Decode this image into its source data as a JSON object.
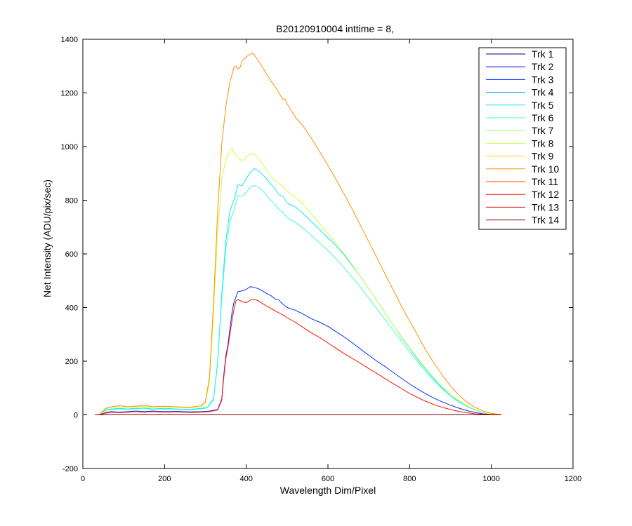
{
  "chart_data": {
    "type": "line",
    "title": "B20120910004 inttime = 8,",
    "xlabel": "Wavelength Dim/Pixel",
    "ylabel": "Net Intensity (ADU/pix/sec)",
    "xlim": [
      0,
      1200
    ],
    "ylim": [
      -200,
      1400
    ],
    "xticks": [
      0,
      200,
      400,
      600,
      800,
      1000,
      1200
    ],
    "yticks": [
      -200,
      0,
      200,
      400,
      600,
      800,
      1000,
      1200,
      1400
    ],
    "grid": false,
    "legend_position": "top-right",
    "series": [
      {
        "name": "Trk 1",
        "color": "#00007f",
        "x": [
          30,
          1025
        ],
        "y": [
          0,
          0
        ]
      },
      {
        "name": "Trk 2",
        "color": "#0000d4",
        "x": [
          30,
          1025
        ],
        "y": [
          0,
          0
        ]
      },
      {
        "name": "Trk 3",
        "color": "#0030ff",
        "x": [
          30,
          40,
          55,
          70,
          90,
          110,
          130,
          150,
          170,
          200,
          230,
          260,
          290,
          310,
          330,
          340,
          345,
          350,
          355,
          360,
          365,
          370,
          375,
          380,
          390,
          400,
          410,
          420,
          430,
          440,
          450,
          460,
          470,
          480,
          490,
          500,
          520,
          540,
          560,
          580,
          600,
          620,
          640,
          660,
          680,
          700,
          720,
          740,
          760,
          780,
          800,
          820,
          840,
          860,
          880,
          900,
          920,
          940,
          960,
          980,
          1000,
          1025
        ],
        "y": [
          0,
          0,
          8,
          12,
          10,
          12,
          14,
          12,
          14,
          12,
          13,
          11,
          12,
          14,
          20,
          60,
          150,
          220,
          260,
          320,
          380,
          420,
          440,
          460,
          462,
          468,
          478,
          475,
          470,
          462,
          452,
          445,
          432,
          428,
          412,
          400,
          390,
          375,
          358,
          345,
          330,
          310,
          290,
          268,
          245,
          222,
          200,
          180,
          158,
          136,
          115,
          96,
          78,
          62,
          48,
          36,
          25,
          16,
          9,
          4,
          1,
          0
        ]
      },
      {
        "name": "Trk 4",
        "color": "#0090ff",
        "x": [
          30,
          1025
        ],
        "y": [
          0,
          0
        ]
      },
      {
        "name": "Trk 5",
        "color": "#10e8f0",
        "x": [
          30,
          40,
          55,
          70,
          90,
          110,
          130,
          150,
          170,
          200,
          230,
          260,
          290,
          305,
          320,
          330,
          340,
          350,
          360,
          365,
          370,
          375,
          380,
          390,
          400,
          410,
          420,
          430,
          440,
          450,
          460,
          470,
          480,
          490,
          500,
          520,
          540,
          560,
          580,
          600,
          620,
          640,
          660,
          680,
          700,
          720,
          740,
          760,
          780,
          800,
          820,
          840,
          860,
          880,
          900,
          920,
          940,
          960,
          980,
          1000,
          1025
        ],
        "y": [
          0,
          0,
          18,
          22,
          24,
          22,
          24,
          26,
          22,
          24,
          22,
          20,
          24,
          28,
          60,
          200,
          450,
          650,
          760,
          780,
          800,
          830,
          858,
          855,
          880,
          905,
          918,
          910,
          895,
          880,
          860,
          845,
          820,
          815,
          790,
          775,
          750,
          720,
          690,
          660,
          630,
          595,
          555,
          515,
          470,
          425,
          380,
          335,
          290,
          248,
          205,
          168,
          132,
          100,
          72,
          50,
          32,
          18,
          9,
          3,
          0
        ]
      },
      {
        "name": "Trk 6",
        "color": "#40ffd0",
        "x": [
          30,
          40,
          55,
          70,
          90,
          110,
          130,
          150,
          170,
          200,
          230,
          260,
          290,
          305,
          320,
          330,
          340,
          350,
          360,
          365,
          370,
          375,
          380,
          390,
          400,
          410,
          420,
          430,
          440,
          450,
          460,
          470,
          480,
          490,
          500,
          520,
          540,
          560,
          580,
          600,
          620,
          640,
          660,
          680,
          700,
          720,
          740,
          760,
          780,
          800,
          820,
          840,
          860,
          880,
          900,
          920,
          940,
          960,
          980,
          1000,
          1025
        ],
        "y": [
          0,
          0,
          16,
          20,
          22,
          20,
          22,
          24,
          20,
          22,
          20,
          18,
          22,
          26,
          55,
          190,
          430,
          620,
          720,
          740,
          760,
          790,
          818,
          815,
          830,
          848,
          855,
          848,
          835,
          818,
          800,
          785,
          765,
          755,
          735,
          718,
          695,
          668,
          640,
          612,
          582,
          548,
          512,
          475,
          435,
          395,
          355,
          315,
          275,
          235,
          196,
          160,
          126,
          96,
          70,
          48,
          31,
          18,
          9,
          3,
          0
        ]
      },
      {
        "name": "Trk 7",
        "color": "#a0ff80",
        "x": [
          30,
          1025
        ],
        "y": [
          0,
          0
        ]
      },
      {
        "name": "Trk 8",
        "color": "#d0ff40",
        "x": [
          30,
          40,
          55,
          70,
          90,
          110,
          130,
          150,
          170,
          200,
          230,
          260,
          290,
          300,
          310,
          320,
          330,
          340,
          350,
          360,
          365,
          370,
          380,
          390,
          400,
          410,
          420,
          430,
          440,
          450,
          460,
          470,
          480,
          490,
          500,
          520,
          540,
          560,
          580,
          600,
          620,
          640,
          660,
          680,
          700,
          720,
          740,
          760,
          780,
          800,
          820,
          840,
          860,
          880,
          900,
          920,
          940,
          960,
          980,
          1000,
          1025
        ],
        "y": [
          0,
          0,
          22,
          28,
          30,
          28,
          30,
          32,
          28,
          30,
          28,
          26,
          30,
          45,
          120,
          380,
          680,
          880,
          950,
          985,
          995,
          975,
          960,
          945,
          960,
          975,
          972,
          955,
          935,
          910,
          890,
          875,
          862,
          852,
          835,
          812,
          782,
          748,
          712,
          675,
          638,
          600,
          558,
          515,
          470,
          425,
          380,
          335,
          292,
          250,
          210,
          172,
          137,
          105,
          77,
          54,
          35,
          20,
          10,
          4,
          0
        ]
      },
      {
        "name": "Trk 9",
        "color": "#ffd000",
        "x": [
          30,
          1025
        ],
        "y": [
          0,
          0
        ]
      },
      {
        "name": "Trk 10",
        "color": "#ff9000",
        "x": [
          30,
          40,
          55,
          70,
          90,
          110,
          130,
          150,
          170,
          200,
          230,
          260,
          290,
          300,
          310,
          320,
          330,
          340,
          350,
          360,
          370,
          375,
          380,
          385,
          390,
          400,
          410,
          415,
          420,
          430,
          440,
          450,
          460,
          470,
          480,
          490,
          495,
          500,
          520,
          540,
          560,
          580,
          600,
          620,
          640,
          660,
          680,
          700,
          720,
          740,
          760,
          780,
          800,
          820,
          840,
          860,
          880,
          900,
          920,
          940,
          960,
          980,
          1000,
          1025
        ],
        "y": [
          0,
          0,
          24,
          30,
          34,
          30,
          32,
          36,
          30,
          32,
          30,
          28,
          34,
          50,
          140,
          420,
          760,
          1010,
          1150,
          1240,
          1295,
          1300,
          1290,
          1295,
          1320,
          1335,
          1345,
          1348,
          1340,
          1320,
          1295,
          1270,
          1245,
          1225,
          1200,
          1175,
          1178,
          1160,
          1110,
          1075,
          1030,
          980,
          930,
          878,
          822,
          765,
          705,
          645,
          585,
          525,
          465,
          405,
          350,
          295,
          240,
          192,
          148,
          108,
          74,
          48,
          28,
          14,
          6,
          0
        ]
      },
      {
        "name": "Trk 11",
        "color": "#ff5000",
        "x": [
          30,
          1025
        ],
        "y": [
          0,
          0
        ]
      },
      {
        "name": "Trk 12",
        "color": "#ff1000",
        "x": [
          30,
          40,
          55,
          70,
          90,
          110,
          130,
          150,
          170,
          200,
          230,
          260,
          290,
          310,
          330,
          340,
          345,
          350,
          355,
          360,
          365,
          370,
          375,
          380,
          390,
          400,
          410,
          420,
          430,
          440,
          450,
          460,
          470,
          480,
          490,
          500,
          520,
          540,
          560,
          580,
          600,
          620,
          640,
          660,
          680,
          700,
          720,
          740,
          760,
          780,
          800,
          820,
          840,
          860,
          880,
          900,
          920,
          940,
          960,
          980,
          1000,
          1025
        ],
        "y": [
          0,
          0,
          6,
          10,
          8,
          10,
          12,
          10,
          12,
          10,
          11,
          9,
          10,
          12,
          18,
          55,
          140,
          210,
          250,
          300,
          350,
          395,
          425,
          430,
          422,
          418,
          428,
          430,
          425,
          415,
          405,
          398,
          388,
          380,
          372,
          362,
          345,
          325,
          305,
          288,
          268,
          248,
          228,
          210,
          192,
          172,
          154,
          135,
          116,
          98,
          80,
          64,
          50,
          38,
          28,
          20,
          13,
          8,
          4,
          2,
          1,
          0
        ]
      },
      {
        "name": "Trk 13",
        "color": "#d40000",
        "x": [
          30,
          1025
        ],
        "y": [
          0,
          0
        ]
      },
      {
        "name": "Trk 14",
        "color": "#7f0000",
        "x": [
          30,
          1025
        ],
        "y": [
          0,
          0
        ]
      }
    ]
  }
}
